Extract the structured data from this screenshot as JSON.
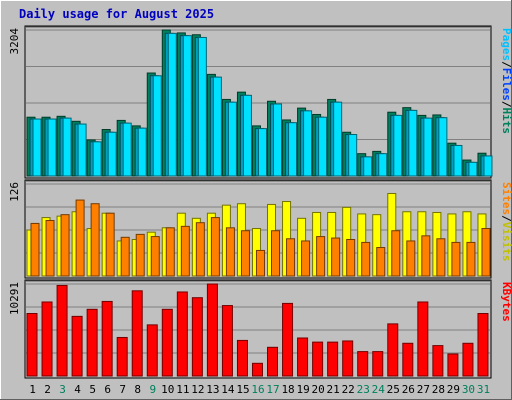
{
  "title": "Daily usage for August 2025",
  "chart_data": [
    {
      "type": "bar",
      "panel": "top",
      "ymax_label": "3204",
      "ylim": [
        0,
        3204
      ],
      "grid": true,
      "categories": [
        "1",
        "2",
        "3",
        "4",
        "5",
        "6",
        "7",
        "8",
        "9",
        "10",
        "11",
        "12",
        "13",
        "14",
        "15",
        "16",
        "17",
        "18",
        "19",
        "20",
        "21",
        "22",
        "23",
        "24",
        "25",
        "26",
        "27",
        "28",
        "29",
        "30",
        "31"
      ],
      "series": [
        {
          "name": "Pages",
          "color": "#00805c",
          "values": [
            1290,
            1290,
            1310,
            1200,
            790,
            1020,
            1220,
            1100,
            2260,
            3204,
            3140,
            3100,
            2230,
            1680,
            1840,
            1100,
            1640,
            1230,
            1490,
            1350,
            1680,
            960,
            490,
            540,
            1400,
            1500,
            1330,
            1340,
            720,
            350,
            500
          ]
        },
        {
          "name": "Files",
          "color": "#00a0c0",
          "values": [
            1250,
            1250,
            1270,
            1140,
            750,
            960,
            1160,
            1050,
            2200,
            3130,
            3080,
            3040,
            2170,
            1620,
            1770,
            1040,
            1580,
            1170,
            1430,
            1290,
            1620,
            910,
            420,
            490,
            1330,
            1440,
            1270,
            1280,
            670,
            300,
            440
          ]
        },
        {
          "name": "Hits",
          "color": "#00e0ff",
          "values": [
            1250,
            1250,
            1270,
            1140,
            750,
            960,
            1160,
            1050,
            2200,
            3130,
            3080,
            3040,
            2170,
            1620,
            1770,
            1040,
            1580,
            1170,
            1430,
            1290,
            1620,
            910,
            420,
            490,
            1330,
            1440,
            1270,
            1280,
            670,
            300,
            440
          ]
        }
      ],
      "legend": [
        {
          "text": "Hits",
          "color": "#00805c"
        },
        {
          "text": "/",
          "color": "#000000"
        },
        {
          "text": "Files",
          "color": "#0040ff"
        },
        {
          "text": "/",
          "color": "#000000"
        },
        {
          "text": "Pages",
          "color": "#00c0ff"
        }
      ]
    },
    {
      "type": "bar",
      "panel": "middle",
      "ymax_label": "126",
      "ylim": [
        0,
        126
      ],
      "grid": true,
      "categories": [
        "1",
        "2",
        "3",
        "4",
        "5",
        "6",
        "7",
        "8",
        "9",
        "10",
        "11",
        "12",
        "13",
        "14",
        "15",
        "16",
        "17",
        "18",
        "19",
        "20",
        "21",
        "22",
        "23",
        "24",
        "25",
        "26",
        "27",
        "28",
        "29",
        "30",
        "31"
      ],
      "series": [
        {
          "name": "Visits",
          "color": "#ffff00",
          "values": [
            63,
            80,
            82,
            88,
            65,
            86,
            48,
            50,
            60,
            66,
            86,
            79,
            86,
            97,
            99,
            65,
            98,
            102,
            79,
            87,
            87,
            94,
            85,
            84,
            113,
            88,
            88,
            87,
            85,
            88,
            85
          ]
        },
        {
          "name": "Sites",
          "color": "#ff8000",
          "values": [
            72,
            76,
            84,
            104,
            99,
            86,
            53,
            57,
            54,
            66,
            68,
            73,
            80,
            66,
            62,
            35,
            62,
            51,
            48,
            54,
            52,
            50,
            46,
            39,
            62,
            48,
            55,
            51,
            46,
            46,
            65
          ]
        }
      ],
      "legend": [
        {
          "text": "Visits",
          "color": "#c0c000"
        },
        {
          "text": "/",
          "color": "#000000"
        },
        {
          "text": "Sites",
          "color": "#ff8000"
        }
      ]
    },
    {
      "type": "bar",
      "panel": "bottom",
      "ymax_label": "10291",
      "ylim": [
        0,
        10291
      ],
      "grid": true,
      "categories": [
        "1",
        "2",
        "3",
        "4",
        "5",
        "6",
        "7",
        "8",
        "9",
        "10",
        "11",
        "12",
        "13",
        "14",
        "15",
        "16",
        "17",
        "18",
        "19",
        "20",
        "21",
        "22",
        "23",
        "24",
        "25",
        "26",
        "27",
        "28",
        "29",
        "30",
        "31"
      ],
      "series": [
        {
          "name": "KBytes",
          "color": "#ff0000",
          "values": [
            6990,
            8280,
            10130,
            6670,
            7460,
            8340,
            4310,
            9530,
            5720,
            7460,
            9400,
            8760,
            10291,
            7880,
            3980,
            1420,
            3210,
            8120,
            4250,
            3790,
            3790,
            3920,
            2730,
            2730,
            5830,
            3660,
            8280,
            3400,
            2460,
            3660,
            6990
          ]
        }
      ],
      "legend": [
        {
          "text": "KBytes",
          "color": "#ff0000"
        }
      ]
    }
  ],
  "x_label_colors": [
    "#000000",
    "#000000",
    "#00805c",
    "#000000",
    "#000000",
    "#000000",
    "#000000",
    "#000000",
    "#00805c",
    "#000000",
    "#000000",
    "#000000",
    "#000000",
    "#000000",
    "#000000",
    "#00805c",
    "#00805c",
    "#000000",
    "#000000",
    "#000000",
    "#000000",
    "#000000",
    "#00805c",
    "#00805c",
    "#000000",
    "#000000",
    "#000000",
    "#000000",
    "#000000",
    "#00805c",
    "#00805c"
  ]
}
